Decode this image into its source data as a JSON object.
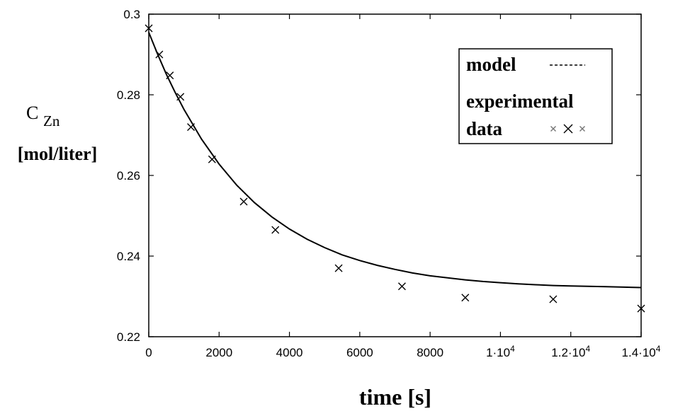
{
  "chart_data": {
    "type": "scatter",
    "xlabel": "time [s]",
    "ylabel_symbol": "C",
    "ylabel_subscript": "Zn",
    "ylabel_unit": "[mol/liter]",
    "xlim": [
      0,
      14000
    ],
    "ylim": [
      0.22,
      0.3
    ],
    "x_ticks": [
      {
        "value": 0,
        "label": "0"
      },
      {
        "value": 2000,
        "label": "2000"
      },
      {
        "value": 4000,
        "label": "4000"
      },
      {
        "value": 6000,
        "label": "6000"
      },
      {
        "value": 8000,
        "label": "8000"
      },
      {
        "value": 10000,
        "label": "1·10",
        "exp": "4"
      },
      {
        "value": 12000,
        "label": "1.2·10",
        "exp": "4"
      },
      {
        "value": 14000,
        "label": "1.4·10",
        "exp": "4"
      }
    ],
    "y_ticks": [
      {
        "value": 0.22,
        "label": "0.22"
      },
      {
        "value": 0.24,
        "label": "0.24"
      },
      {
        "value": 0.26,
        "label": "0.26"
      },
      {
        "value": 0.28,
        "label": "0.28"
      },
      {
        "value": 0.3,
        "label": "0.3"
      }
    ],
    "grid": false,
    "legend_position": "top-right",
    "series": [
      {
        "name": "model",
        "kind": "line",
        "color": "#000000",
        "x": [
          0,
          250,
          500,
          750,
          1000,
          1500,
          2000,
          2500,
          3000,
          3500,
          4000,
          4500,
          5000,
          5500,
          6000,
          6500,
          7000,
          7500,
          8000,
          8500,
          9000,
          9500,
          10000,
          10500,
          11000,
          11500,
          12000,
          12500,
          13000,
          13500,
          14000
        ],
        "y": [
          0.2955,
          0.2901,
          0.2851,
          0.2806,
          0.2764,
          0.269,
          0.2628,
          0.2576,
          0.2533,
          0.2497,
          0.2467,
          0.2442,
          0.2421,
          0.2403,
          0.2389,
          0.2377,
          0.2367,
          0.2358,
          0.2351,
          0.2346,
          0.2341,
          0.2337,
          0.2334,
          0.2331,
          0.2329,
          0.2327,
          0.2326,
          0.2325,
          0.2324,
          0.2323,
          0.2322
        ]
      },
      {
        "name": "experimental data",
        "kind": "markers",
        "marker": "x",
        "color": "#000000",
        "x": [
          0,
          300,
          600,
          900,
          1200,
          1800,
          2700,
          3600,
          5400,
          7200,
          9000,
          11500,
          14000
        ],
        "y": [
          0.2965,
          0.29,
          0.2848,
          0.2795,
          0.272,
          0.264,
          0.2535,
          0.2465,
          0.237,
          0.2325,
          0.2297,
          0.2293,
          0.227
        ]
      }
    ],
    "legend": [
      {
        "label": "model",
        "symbol": "dash"
      },
      {
        "label": "experimental",
        "label2": "data",
        "symbol": "markers"
      }
    ]
  }
}
